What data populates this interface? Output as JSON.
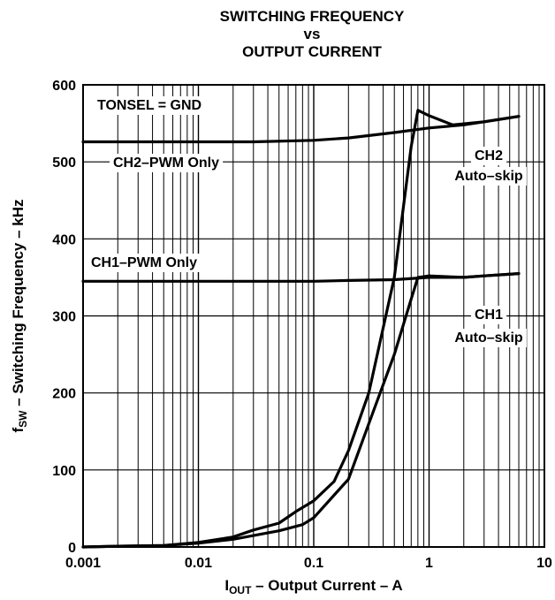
{
  "chart_data": {
    "type": "line",
    "title_lines": [
      "SWITCHING FREQUENCY",
      "vs",
      "OUTPUT CURRENT"
    ],
    "xlabel": {
      "main": "I",
      "sub": "OUT",
      "rest": " – Output Current – A"
    },
    "ylabel": {
      "main": "f",
      "sub": "SW",
      "rest": " – Switching Frequency  – kHz"
    },
    "x_scale": "log",
    "xlim": [
      0.001,
      10
    ],
    "ylim": [
      0,
      600
    ],
    "x_ticks": [
      {
        "value": 0.001,
        "label": "0.001"
      },
      {
        "value": 0.01,
        "label": "0.01"
      },
      {
        "value": 0.1,
        "label": "0.1"
      },
      {
        "value": 1,
        "label": "1"
      },
      {
        "value": 10,
        "label": "10"
      }
    ],
    "y_ticks": [
      {
        "value": 0,
        "label": "0"
      },
      {
        "value": 100,
        "label": "100"
      },
      {
        "value": 200,
        "label": "200"
      },
      {
        "value": 300,
        "label": "300"
      },
      {
        "value": 400,
        "label": "400"
      },
      {
        "value": 500,
        "label": "500"
      },
      {
        "value": 600,
        "label": "600"
      }
    ],
    "grid": true,
    "annotations": [
      {
        "text": "TONSEL = GND"
      },
      {
        "text": "CH2–PWM Only"
      },
      {
        "text": "CH2"
      },
      {
        "text": "Auto–skip"
      },
      {
        "text": "CH1–PWM Only"
      },
      {
        "text": "CH1"
      },
      {
        "text": "Auto–skip"
      }
    ],
    "series": [
      {
        "values": [
          [
            0.001,
            526
          ],
          [
            0.03,
            526
          ],
          [
            0.1,
            528
          ],
          [
            0.2,
            531
          ],
          [
            0.5,
            538
          ],
          [
            1,
            544
          ],
          [
            2,
            548
          ],
          [
            3,
            552
          ],
          [
            6,
            559
          ]
        ]
      },
      {
        "values": [
          [
            0.001,
            0
          ],
          [
            0.002,
            1
          ],
          [
            0.005,
            2
          ],
          [
            0.01,
            6
          ],
          [
            0.02,
            13
          ],
          [
            0.03,
            22
          ],
          [
            0.05,
            31
          ],
          [
            0.07,
            46
          ],
          [
            0.1,
            60
          ],
          [
            0.15,
            85
          ],
          [
            0.2,
            125
          ],
          [
            0.3,
            200
          ],
          [
            0.5,
            350
          ],
          [
            0.7,
            520
          ],
          [
            0.8,
            567
          ],
          [
            1,
            560
          ],
          [
            1.6,
            548
          ],
          [
            3,
            552
          ],
          [
            6,
            559
          ]
        ]
      },
      {
        "values": [
          [
            0.001,
            345
          ],
          [
            0.1,
            345
          ],
          [
            0.2,
            346
          ],
          [
            0.5,
            347
          ],
          [
            1,
            350
          ],
          [
            2,
            350
          ],
          [
            3,
            352
          ],
          [
            6,
            355
          ]
        ]
      },
      {
        "values": [
          [
            0.001,
            0
          ],
          [
            0.002,
            1
          ],
          [
            0.005,
            2
          ],
          [
            0.01,
            5
          ],
          [
            0.02,
            10
          ],
          [
            0.05,
            21
          ],
          [
            0.08,
            29
          ],
          [
            0.1,
            38
          ],
          [
            0.2,
            88
          ],
          [
            0.3,
            160
          ],
          [
            0.5,
            250
          ],
          [
            0.7,
            322
          ],
          [
            0.8,
            350
          ],
          [
            1,
            352
          ],
          [
            2,
            350
          ],
          [
            3,
            352
          ],
          [
            6,
            355
          ]
        ]
      }
    ]
  }
}
